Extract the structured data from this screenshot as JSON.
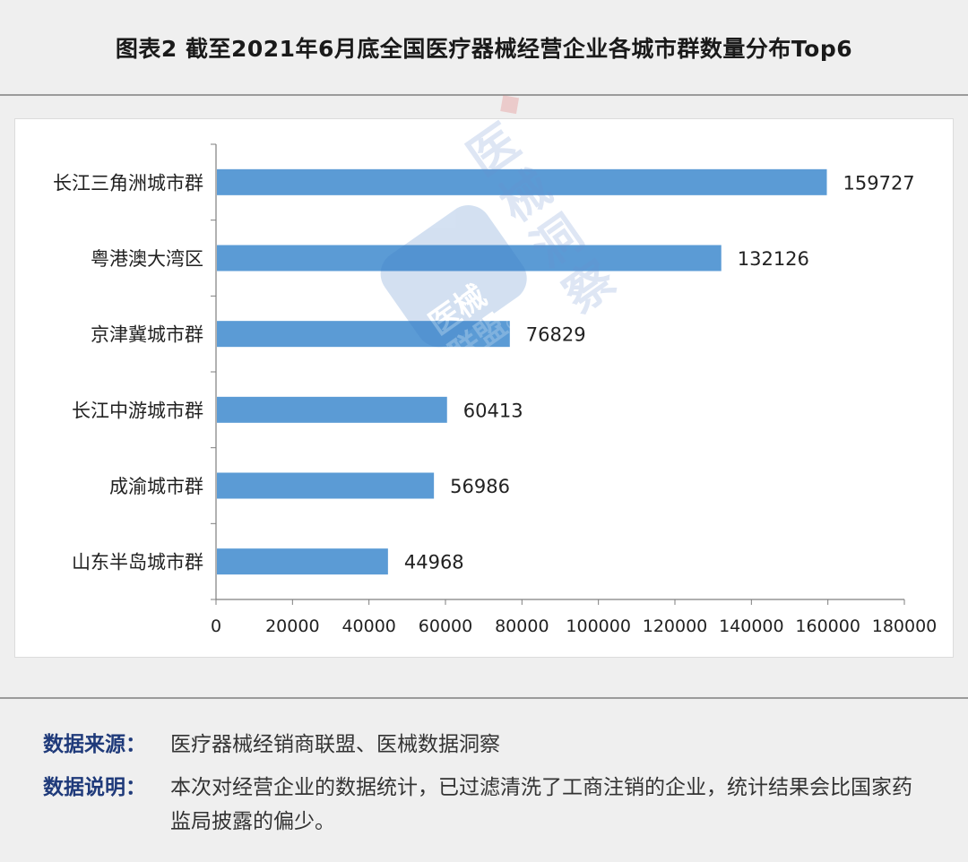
{
  "title": "图表2 截至2021年6月底全国医疗器械经营企业各城市群数量分布Top6",
  "chart_data": {
    "type": "bar",
    "orientation": "horizontal",
    "categories": [
      "长江三角洲城市群",
      "粤港澳大湾区",
      "京津冀城市群",
      "长江中游城市群",
      "成渝城市群",
      "山东半岛城市群"
    ],
    "values": [
      159727,
      132126,
      76829,
      60413,
      56986,
      44968
    ],
    "xlim": [
      0,
      180000
    ],
    "xticks": [
      0,
      20000,
      40000,
      60000,
      80000,
      100000,
      120000,
      140000,
      160000,
      180000
    ],
    "xtick_labels": [
      "0",
      "20000",
      "40000",
      "60000",
      "80000",
      "100000",
      "120000",
      "140000",
      "160000",
      "180000"
    ],
    "grid": false,
    "bar_color": "#5b9bd5"
  },
  "watermark": {
    "box_text_line1": "医械",
    "box_text_line2": "联盟",
    "box_at": "@",
    "side_text_line1": "医械",
    "side_text_line2": "洞察"
  },
  "footer": {
    "source_label": "数据来源：",
    "source_text": "医疗器械经销商联盟、医械数据洞察",
    "note_label": "数据说明：",
    "note_text": "本次对经营企业的数据统计，已过滤清洗了工商注销的企业，统计结果会比国家药监局披露的偏少。"
  }
}
